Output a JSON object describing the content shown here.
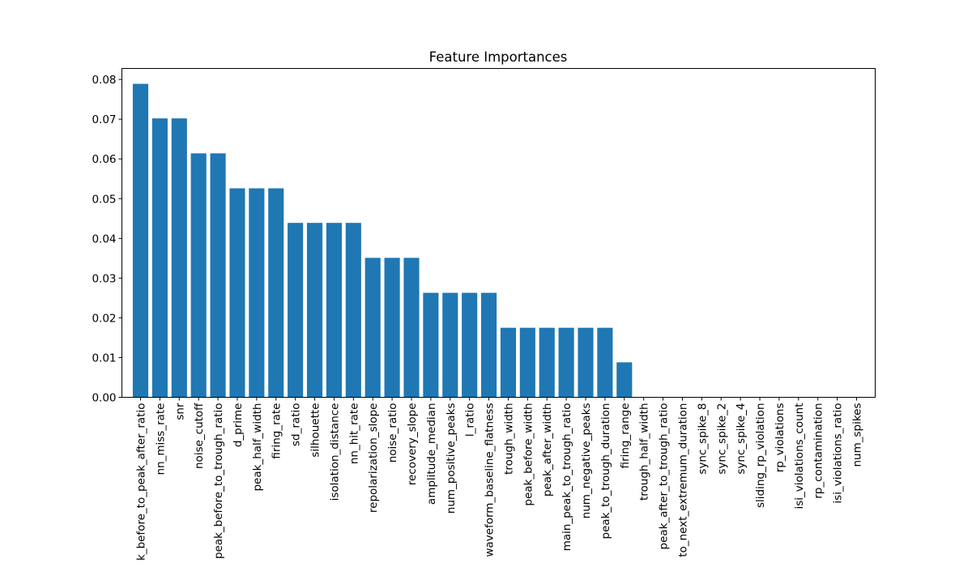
{
  "chart_data": {
    "type": "bar",
    "title": "Feature Importances",
    "xlabel": "",
    "ylabel": "",
    "ylim": [
      0,
      0.083
    ],
    "yticks": [
      "0.00",
      "0.01",
      "0.02",
      "0.03",
      "0.04",
      "0.05",
      "0.06",
      "0.07",
      "0.08"
    ],
    "grid": false,
    "bar_color": "#1f77b4",
    "categories": [
      "k_before_to_peak_after_ratio",
      "nn_miss_rate",
      "snr",
      "noise_cutoff",
      "peak_before_to_trough_ratio",
      "d_prime",
      "peak_half_width",
      "firing_rate",
      "sd_ratio",
      "silhouette",
      "isolation_distance",
      "nn_hit_rate",
      "repolarization_slope",
      "noise_ratio",
      "recovery_slope",
      "amplitude_median",
      "num_positive_peaks",
      "l_ratio",
      "waveform_baseline_flatness",
      "trough_width",
      "peak_before_width",
      "peak_after_width",
      "main_peak_to_trough_ratio",
      "num_negative_peaks",
      "peak_to_trough_duration",
      "firing_range",
      "trough_half_width",
      "peak_after_to_trough_ratio",
      "to_next_extremum_duration",
      "sync_spike_8",
      "sync_spike_2",
      "sync_spike_4",
      "sliding_rp_violation",
      "rp_violations",
      "isi_violations_count",
      "rp_contamination",
      "isi_violations_ratio",
      "num_spikes"
    ],
    "values": [
      0.0789,
      0.0702,
      0.0702,
      0.0614,
      0.0614,
      0.0526,
      0.0526,
      0.0526,
      0.0439,
      0.0439,
      0.0439,
      0.0439,
      0.0351,
      0.0351,
      0.0351,
      0.0263,
      0.0263,
      0.0263,
      0.0263,
      0.0175,
      0.0175,
      0.0175,
      0.0175,
      0.0175,
      0.0175,
      0.0088,
      0,
      0,
      0,
      0,
      0,
      0,
      0,
      0,
      0,
      0,
      0,
      0
    ]
  }
}
